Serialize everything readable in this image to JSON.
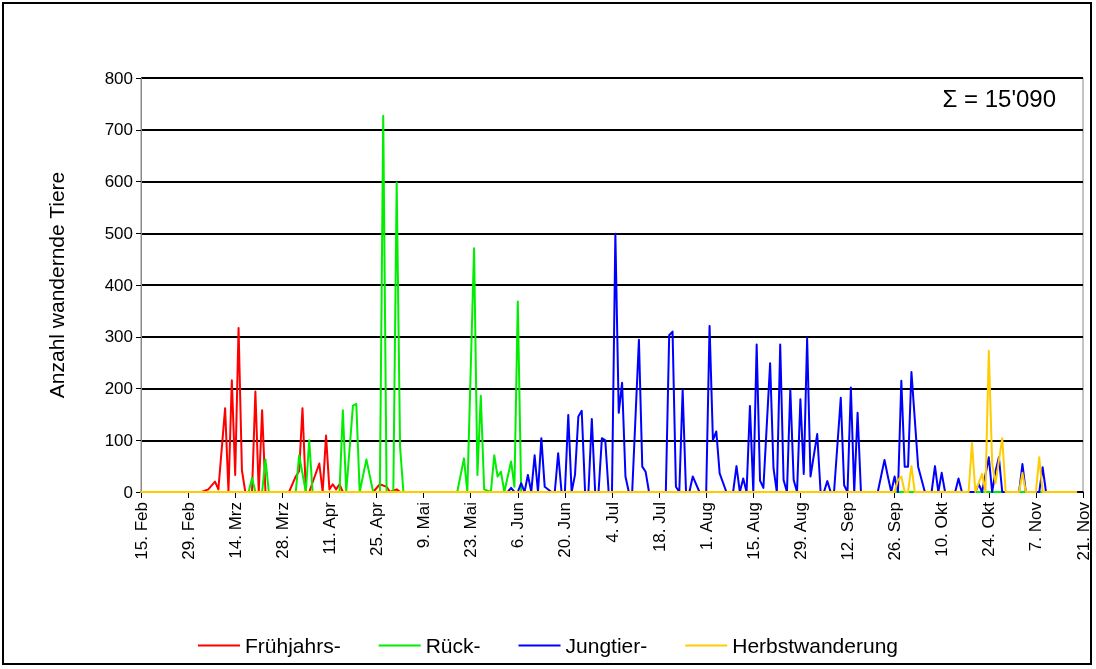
{
  "chart_data": {
    "type": "line",
    "ylabel": "Anzahl wandernde Tiere",
    "annotations": [
      "Σ = 15'090"
    ],
    "xlim": [
      "--02-15",
      "--11-21"
    ],
    "xticks": [
      {
        "value": "--02-15",
        "label": "15. Feb"
      },
      {
        "value": "--02-29",
        "label": "29. Feb"
      },
      {
        "value": "--03-14",
        "label": "14. Mrz"
      },
      {
        "value": "--03-28",
        "label": "28. Mrz"
      },
      {
        "value": "--04-11",
        "label": "11. Apr"
      },
      {
        "value": "--04-25",
        "label": "25. Apr"
      },
      {
        "value": "--05-09",
        "label": "9. Mai"
      },
      {
        "value": "--05-23",
        "label": "23. Mai"
      },
      {
        "value": "--06-06",
        "label": "6. Jun"
      },
      {
        "value": "--06-20",
        "label": "20. Jun"
      },
      {
        "value": "--07-04",
        "label": "4. Jul"
      },
      {
        "value": "--07-18",
        "label": "18. Jul"
      },
      {
        "value": "--08-01",
        "label": "1. Aug"
      },
      {
        "value": "--08-15",
        "label": "15. Aug"
      },
      {
        "value": "--08-29",
        "label": "29. Aug"
      },
      {
        "value": "--09-12",
        "label": "12. Sep"
      },
      {
        "value": "--09-26",
        "label": "26. Sep"
      },
      {
        "value": "--10-10",
        "label": "10. Okt"
      },
      {
        "value": "--10-24",
        "label": "24. Okt"
      },
      {
        "value": "--11-07",
        "label": "7. Nov"
      },
      {
        "value": "--11-21",
        "label": "21. Nov"
      }
    ],
    "ylim": [
      0,
      800
    ],
    "yticks": [
      0,
      100,
      200,
      300,
      400,
      500,
      600,
      700,
      800
    ],
    "grid": "y",
    "legend": "bottom",
    "marker": "none",
    "line_style": "solid",
    "series": [
      {
        "name": "Frühjahrs-",
        "color": "#ff0000",
        "x": [
          "--02-15",
          "--03-04",
          "--03-06",
          "--03-08",
          "--03-09",
          "--03-11",
          "--03-12",
          "--03-13",
          "--03-14",
          "--03-15",
          "--03-16",
          "--03-17",
          "--03-19",
          "--03-20",
          "--03-21",
          "--03-22",
          "--03-23",
          "--03-30",
          "--04-01",
          "--04-02",
          "--04-03",
          "--04-04",
          "--04-05",
          "--04-08",
          "--04-09",
          "--04-10",
          "--04-11",
          "--04-12",
          "--04-13",
          "--04-14",
          "--04-15",
          "--04-24",
          "--04-26",
          "--04-28",
          "--04-29",
          "--05-01",
          "--05-02",
          "--11-19"
        ],
        "values": [
          0,
          0,
          5,
          20,
          5,
          162,
          0,
          216,
          33,
          317,
          42,
          0,
          0,
          194,
          0,
          158,
          0,
          0,
          30,
          40,
          162,
          0,
          0,
          55,
          0,
          109,
          5,
          15,
          5,
          15,
          0,
          0,
          15,
          10,
          0,
          5,
          0,
          0
        ]
      },
      {
        "name": "Rück-",
        "color": "#00ee00",
        "x": [
          "--02-15",
          "--03-18",
          "--03-19",
          "--03-20",
          "--03-22",
          "--03-23",
          "--03-24",
          "--04-01",
          "--04-02",
          "--04-04",
          "--04-05",
          "--04-06",
          "--04-14",
          "--04-15",
          "--04-16",
          "--04-18",
          "--04-19",
          "--04-20",
          "--04-22",
          "--04-24",
          "--04-26",
          "--04-27",
          "--04-28",
          "--04-30",
          "--05-01",
          "--05-02",
          "--05-03",
          "--05-19",
          "--05-21",
          "--05-22",
          "--05-24",
          "--05-25",
          "--05-26",
          "--05-27",
          "--05-29",
          "--05-30",
          "--05-31",
          "--06-01",
          "--06-02",
          "--06-04",
          "--06-05",
          "--06-06",
          "--06-07",
          "--11-19"
        ],
        "values": [
          0,
          0,
          27,
          0,
          0,
          63,
          0,
          0,
          71,
          0,
          100,
          0,
          0,
          158,
          0,
          167,
          170,
          0,
          63,
          0,
          0,
          727,
          0,
          0,
          598,
          88,
          0,
          0,
          65,
          0,
          471,
          33,
          186,
          5,
          0,
          71,
          30,
          39,
          0,
          59,
          10,
          368,
          0,
          0
        ]
      },
      {
        "name": "Jungtier-",
        "color": "#0000ff",
        "x": [
          "--02-15",
          "--06-03",
          "--06-04",
          "--06-05",
          "--06-06",
          "--06-07",
          "--06-08",
          "--06-09",
          "--06-10",
          "--06-11",
          "--06-12",
          "--06-13",
          "--06-14",
          "--06-16",
          "--06-17",
          "--06-18",
          "--06-19",
          "--06-20",
          "--06-21",
          "--06-22",
          "--06-23",
          "--06-24",
          "--06-25",
          "--06-26",
          "--06-27",
          "--06-28",
          "--06-29",
          "--06-30",
          "--07-01",
          "--07-02",
          "--07-03",
          "--07-04",
          "--07-05",
          "--07-06",
          "--07-07",
          "--07-08",
          "--07-09",
          "--07-10",
          "--07-12",
          "--07-13",
          "--07-14",
          "--07-15",
          "--07-20",
          "--07-21",
          "--07-22",
          "--07-23",
          "--07-24",
          "--07-25",
          "--07-26",
          "--07-27",
          "--07-28",
          "--07-30",
          "--08-01",
          "--08-02",
          "--08-03",
          "--08-04",
          "--08-05",
          "--08-07",
          "--08-09",
          "--08-10",
          "--08-11",
          "--08-12",
          "--08-13",
          "--08-14",
          "--08-15",
          "--08-16",
          "--08-17",
          "--08-18",
          "--08-20",
          "--08-21",
          "--08-22",
          "--08-23",
          "--08-24",
          "--08-25",
          "--08-26",
          "--08-27",
          "--08-28",
          "--08-29",
          "--08-30",
          "--08-31",
          "--09-01",
          "--09-03",
          "--09-04",
          "--09-05",
          "--09-06",
          "--09-07",
          "--09-08",
          "--09-10",
          "--09-11",
          "--09-12",
          "--09-13",
          "--09-14",
          "--09-15",
          "--09-16",
          "--09-21",
          "--09-23",
          "--09-24",
          "--09-25",
          "--09-26",
          "--09-27",
          "--09-28",
          "--09-29",
          "--09-30",
          "--10-01",
          "--10-03",
          "--10-05",
          "--10-07",
          "--10-08",
          "--10-09",
          "--10-10",
          "--10-11",
          "--10-14",
          "--10-15",
          "--10-16",
          "--10-20",
          "--10-21",
          "--10-22",
          "--10-24",
          "--10-25",
          "--10-26",
          "--10-27",
          "--10-28",
          "--11-02",
          "--11-03",
          "--11-04",
          "--11-08",
          "--11-09",
          "--11-10",
          "--11-19"
        ],
        "values": [
          0,
          0,
          8,
          0,
          0,
          17,
          0,
          33,
          0,
          71,
          0,
          104,
          10,
          0,
          0,
          75,
          0,
          0,
          149,
          0,
          33,
          146,
          157,
          0,
          0,
          141,
          0,
          0,
          104,
          100,
          0,
          0,
          499,
          153,
          211,
          30,
          0,
          0,
          294,
          49,
          39,
          0,
          0,
          303,
          310,
          10,
          0,
          197,
          0,
          0,
          30,
          0,
          0,
          321,
          100,
          117,
          36,
          0,
          0,
          50,
          0,
          26,
          0,
          166,
          0,
          285,
          22,
          8,
          249,
          46,
          0,
          285,
          23,
          0,
          198,
          23,
          0,
          179,
          35,
          297,
          30,
          112,
          0,
          0,
          21,
          0,
          0,
          182,
          13,
          0,
          202,
          0,
          153,
          0,
          0,
          62,
          30,
          0,
          30,
          0,
          215,
          49,
          49,
          232,
          49,
          0,
          0,
          50,
          0,
          37,
          0,
          0,
          26,
          0,
          0,
          15,
          0,
          67,
          0,
          40,
          67,
          0,
          0,
          54,
          0,
          0,
          48,
          0,
          0
        ]
      },
      {
        "name": "Herbstwanderung",
        "color": "#ffcc00",
        "x": [
          "--02-15",
          "--09-26",
          "--09-27",
          "--09-28",
          "--09-29",
          "--09-30",
          "--10-01",
          "--10-02",
          "--10-18",
          "--10-19",
          "--10-20",
          "--10-22",
          "--10-23",
          "--10-24",
          "--10-25",
          "--10-26",
          "--10-28",
          "--10-29",
          "--11-02",
          "--11-03",
          "--11-04",
          "--11-07",
          "--11-08",
          "--11-09",
          "--11-19"
        ],
        "values": [
          0,
          0,
          23,
          30,
          0,
          0,
          50,
          0,
          0,
          95,
          0,
          35,
          0,
          273,
          55,
          17,
          104,
          0,
          0,
          37,
          0,
          0,
          67,
          0,
          0
        ]
      }
    ]
  }
}
